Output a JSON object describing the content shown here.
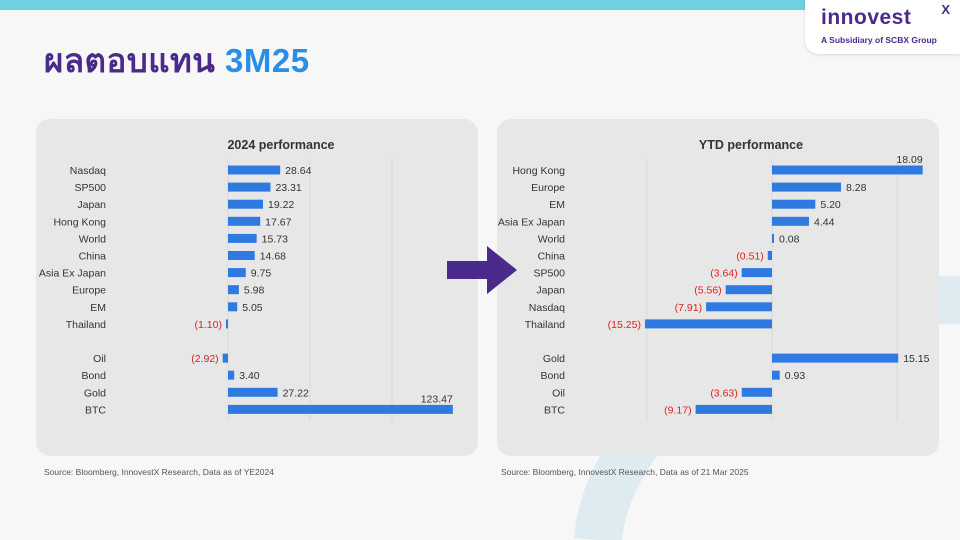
{
  "page": {
    "title_thai": "ผลตอบแทน",
    "title_accent": "3M25",
    "logo": {
      "word": "innovest",
      "x": "X",
      "subtitle": "A Subsidiary of SCBX Group"
    },
    "colors": {
      "bar": "#2f7ae0",
      "negative": "#e01f1f",
      "title": "#4a2a8a",
      "accent": "#2a8de6",
      "arrow": "#4a2a8a"
    }
  },
  "chart_data": [
    {
      "type": "bar",
      "orientation": "horizontal",
      "title": "2024 performance",
      "source": "Source: Bloomberg, InnovestX Research, Data as of YE2024",
      "groups": [
        {
          "categories": [
            "Nasdaq",
            "SP500",
            "Japan",
            "Hong Kong",
            "World",
            "China",
            "Asia Ex Japan",
            "Europe",
            "EM",
            "Thailand"
          ],
          "values": [
            28.64,
            23.31,
            19.22,
            17.67,
            15.73,
            14.68,
            9.75,
            5.98,
            5.05,
            -1.1
          ],
          "labels": [
            "28.64",
            "23.31",
            "19.22",
            "17.67",
            "15.73",
            "14.68",
            "9.75",
            "5.98",
            "5.05",
            "(1.10)"
          ]
        },
        {
          "categories": [
            "Oil",
            "Bond",
            "Gold",
            "BTC"
          ],
          "values": [
            -2.92,
            3.4,
            27.22,
            123.47
          ],
          "labels": [
            "(2.92)",
            "3.40",
            "27.22",
            "123.47"
          ]
        }
      ],
      "grid": true
    },
    {
      "type": "bar",
      "orientation": "horizontal",
      "title": "YTD performance",
      "source": "Source: Bloomberg, InnovestX Research, Data as of 21 Mar 2025",
      "groups": [
        {
          "categories": [
            "Hong Kong",
            "Europe",
            "EM",
            "Asia Ex Japan",
            "World",
            "China",
            "SP500",
            "Japan",
            "Nasdaq",
            "Thailand"
          ],
          "values": [
            18.09,
            8.28,
            5.2,
            4.44,
            0.08,
            -0.51,
            -3.64,
            -5.56,
            -7.91,
            -15.25
          ],
          "labels": [
            "18.09",
            "8.28",
            "5.20",
            "4.44",
            "0.08",
            "(0.51)",
            "(3.64)",
            "(5.56)",
            "(7.91)",
            "(15.25)"
          ]
        },
        {
          "categories": [
            "Gold",
            "Bond",
            "Oil",
            "BTC"
          ],
          "values": [
            15.15,
            0.93,
            -3.63,
            -9.17
          ],
          "labels": [
            "15.15",
            "0.93",
            "(3.63)",
            "(9.17)"
          ]
        }
      ],
      "grid": true
    }
  ]
}
